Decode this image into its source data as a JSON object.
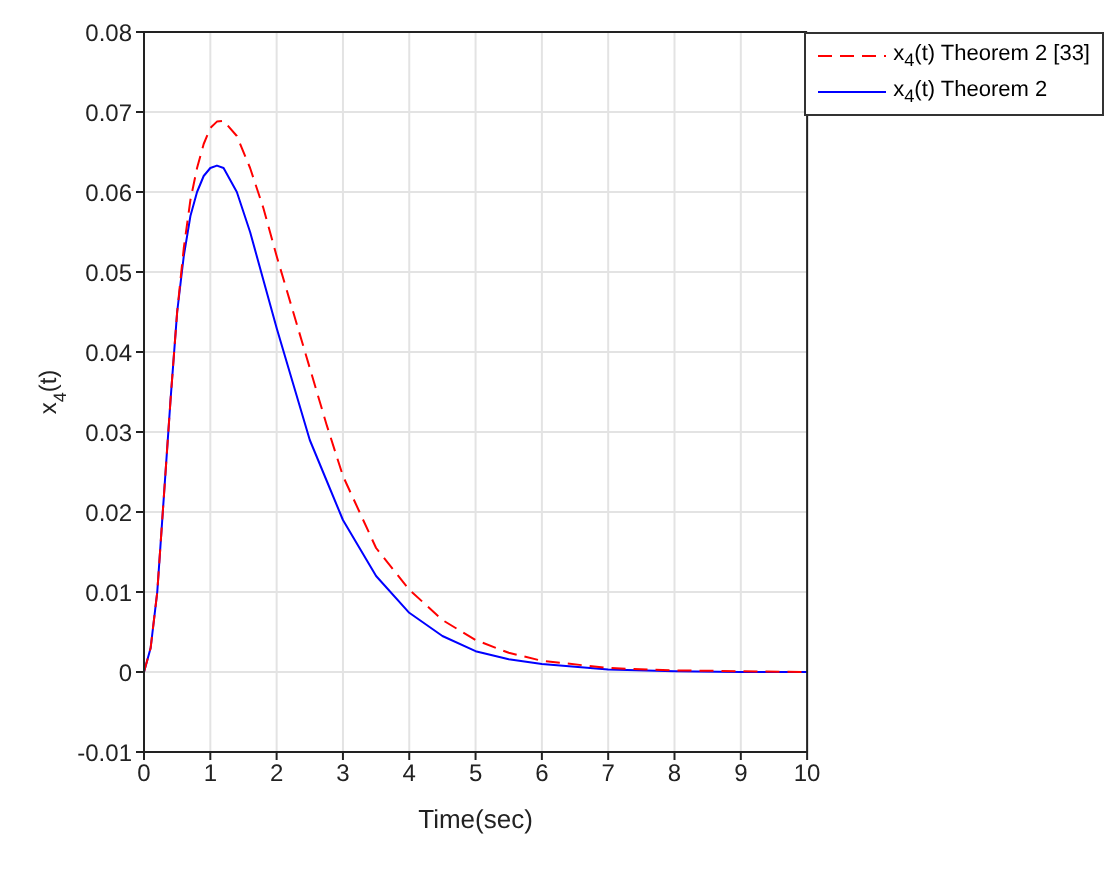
{
  "chart_data": {
    "type": "line",
    "xlabel": "Time(sec)",
    "ylabel": "x$_{4}$(t)",
    "x": [
      0,
      0.1,
      0.2,
      0.3,
      0.4,
      0.5,
      0.6,
      0.7,
      0.8,
      0.9,
      1.0,
      1.1,
      1.2,
      1.4,
      1.6,
      1.8,
      2.0,
      2.25,
      2.5,
      2.75,
      3,
      3.5,
      4,
      4.5,
      5,
      5.5,
      6,
      7,
      8,
      9,
      10
    ],
    "series": [
      {
        "name": "x$_{4}$(t) Theorem 2 [33]",
        "color": "#ff0000",
        "line_style": "dashed",
        "values": [
          0,
          0.003,
          0.01,
          0.022,
          0.034,
          0.045,
          0.053,
          0.059,
          0.063,
          0.066,
          0.068,
          0.0688,
          0.0689,
          0.067,
          0.063,
          0.058,
          0.052,
          0.045,
          0.038,
          0.031,
          0.0245,
          0.0155,
          0.0103,
          0.0065,
          0.004,
          0.0024,
          0.0014,
          0.0005,
          0.0002,
          0.0001,
          0
        ]
      },
      {
        "name": "x$_{4}$(t) Theorem 2",
        "color": "#0000ff",
        "line_style": "solid",
        "values": [
          0,
          0.003,
          0.01,
          0.022,
          0.034,
          0.045,
          0.052,
          0.057,
          0.06,
          0.062,
          0.063,
          0.0633,
          0.063,
          0.06,
          0.055,
          0.049,
          0.043,
          0.036,
          0.029,
          0.024,
          0.019,
          0.012,
          0.0074,
          0.0045,
          0.0026,
          0.0016,
          0.001,
          0.0003,
          0.0001,
          0,
          0
        ]
      }
    ],
    "xlim": [
      0,
      10
    ],
    "xticks": [
      0,
      1,
      2,
      3,
      4,
      5,
      6,
      7,
      8,
      9,
      10
    ],
    "ylim": [
      -0.01,
      0.08
    ],
    "yticks": [
      -0.01,
      0,
      0.01,
      0.02,
      0.03,
      0.04,
      0.05,
      0.06,
      0.07,
      0.08
    ],
    "grid": true,
    "legend": "top right",
    "marker": "none"
  }
}
